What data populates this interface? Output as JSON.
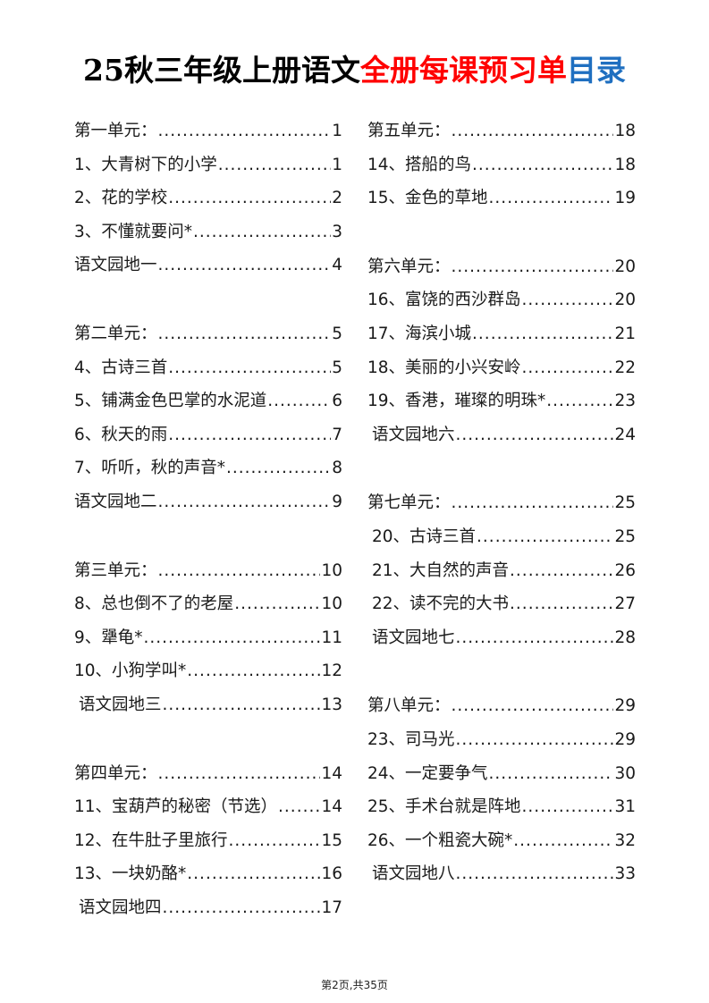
{
  "title": {
    "part1": "25秋三年级上册语文",
    "part2": "全册每课预习单",
    "part3": "目录",
    "colors": {
      "part1": "#000000",
      "part2": "#ff0000",
      "part3": "#1f6fc0"
    }
  },
  "columns": [
    {
      "groups": [
        {
          "rows": [
            {
              "label": "第一单元：",
              "page": "1"
            },
            {
              "label": "1、大青树下的小学",
              "page": "1"
            },
            {
              "label": "2、花的学校",
              "page": "2"
            },
            {
              "label": "3、不懂就要问*",
              "page": "3"
            },
            {
              "label": "语文园地一",
              "page": "4"
            }
          ]
        },
        {
          "rows": [
            {
              "label": "第二单元：",
              "page": "5"
            },
            {
              "label": "4、古诗三首",
              "page": "5"
            },
            {
              "label": "5、铺满金色巴掌的水泥道",
              "page": "6"
            },
            {
              "label": "6、秋天的雨",
              "page": "7"
            },
            {
              "label": "7、听听，秋的声音*",
              "page": "8"
            },
            {
              "label": "语文园地二",
              "page": "9"
            }
          ]
        },
        {
          "rows": [
            {
              "label": "第三单元：",
              "page": "10"
            },
            {
              "label": "8、总也倒不了的老屋",
              "page": "10"
            },
            {
              "label": "9、犟龟*",
              "page": "11"
            },
            {
              "label": "10、小狗学叫*",
              "page": "12"
            },
            {
              "label": "语文园地三",
              "page": "13",
              "indent": true
            }
          ]
        },
        {
          "rows": [
            {
              "label": "第四单元：",
              "page": "14"
            },
            {
              "label": "11、宝葫芦的秘密（节选）",
              "page": "14"
            },
            {
              "label": "12、在牛肚子里旅行",
              "page": "15"
            },
            {
              "label": "13、一块奶酪*",
              "page": "16"
            },
            {
              "label": "语文园地四",
              "page": "17",
              "indent": true
            }
          ]
        }
      ]
    },
    {
      "groups": [
        {
          "rows": [
            {
              "label": "第五单元：",
              "page": "18"
            },
            {
              "label": "14、搭船的鸟",
              "page": "18"
            },
            {
              "label": "15、金色的草地",
              "page": "19"
            }
          ]
        },
        {
          "rows": [
            {
              "label": "第六单元：",
              "page": "20"
            },
            {
              "label": "16、富饶的西沙群岛",
              "page": "20"
            },
            {
              "label": "17、海滨小城",
              "page": "21"
            },
            {
              "label": "18、美丽的小兴安岭",
              "page": "22"
            },
            {
              "label": "19、香港，璀璨的明珠*",
              "page": "23"
            },
            {
              "label": "语文园地六",
              "page": "24",
              "indent": true
            }
          ]
        },
        {
          "rows": [
            {
              "label": "第七单元：",
              "page": "25"
            },
            {
              "label": "20、古诗三首",
              "page": "25",
              "indent": true
            },
            {
              "label": "21、大自然的声音",
              "page": "26",
              "indent": true
            },
            {
              "label": "22、读不完的大书",
              "page": "27",
              "indent": true
            },
            {
              "label": "语文园地七",
              "page": "28",
              "indent": true
            }
          ]
        },
        {
          "rows": [
            {
              "label": "第八单元：",
              "page": "29"
            },
            {
              "label": "23、司马光",
              "page": "29"
            },
            {
              "label": "24、一定要争气",
              "page": "30"
            },
            {
              "label": "25、手术台就是阵地",
              "page": "31"
            },
            {
              "label": "26、一个粗瓷大碗*",
              "page": "32"
            },
            {
              "label": "语文园地八",
              "page": "33",
              "indent": true
            }
          ]
        }
      ]
    }
  ],
  "footer": "第2页,共35页"
}
